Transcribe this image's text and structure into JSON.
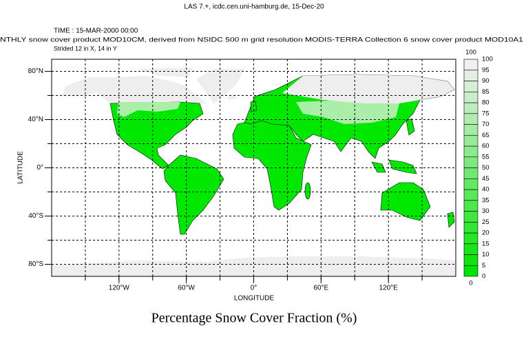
{
  "header": "LAS 7.+, icdc.cen.uni-hamburg.de, 15-Dec-20",
  "chart_data": {
    "type": "map",
    "time": "TIME : 15-MAR-2000 00:00",
    "title": "NTHLY snow cover product MOD10CM, derived from NSIDC 500 m grid resolution MODIS-TERRA Collection 6 snow cover product MOD10A1",
    "subtitle": "Strided 12 in X, 14 in Y",
    "variable": "Percentage Snow Cover Fraction (%)",
    "xlabel": "LONGITUDE",
    "ylabel": "LATITUDE",
    "xlim": [
      -180,
      180
    ],
    "ylim": [
      -90,
      90
    ],
    "xticks": [
      {
        "value": -120,
        "label": "120°W"
      },
      {
        "value": -60,
        "label": "60°W"
      },
      {
        "value": 0,
        "label": "0°"
      },
      {
        "value": 60,
        "label": "60°E"
      },
      {
        "value": 120,
        "label": "120°E"
      }
    ],
    "yticks": [
      {
        "value": 80,
        "label": "80°N"
      },
      {
        "value": 40,
        "label": "40°N"
      },
      {
        "value": 0,
        "label": "0°"
      },
      {
        "value": -40,
        "label": "40°S"
      },
      {
        "value": -80,
        "label": "80°S"
      }
    ],
    "xgrid": [
      -150,
      -120,
      -90,
      -60,
      -30,
      0,
      30,
      60,
      90,
      120,
      150
    ],
    "ygrid": [
      -80,
      -60,
      -40,
      -20,
      0,
      20,
      40,
      60,
      80
    ],
    "grid": true,
    "colorbar": {
      "lim": [
        0,
        100
      ],
      "ticks": [
        0,
        5,
        10,
        15,
        20,
        25,
        30,
        35,
        40,
        45,
        50,
        55,
        60,
        65,
        70,
        75,
        80,
        85,
        90,
        95,
        100
      ],
      "colors": [
        "#00e400",
        "#0de50d",
        "#19e519",
        "#26e626",
        "#32e632",
        "#3fe73f",
        "#4ce74c",
        "#58e858",
        "#65e965",
        "#71e971",
        "#7eea7e",
        "#8bea8b",
        "#97eb97",
        "#a4eca4",
        "#b0ecb0",
        "#bdedbd",
        "#caedca",
        "#d6eed6",
        "#e3efe3",
        "#f0f0f0"
      ]
    }
  }
}
